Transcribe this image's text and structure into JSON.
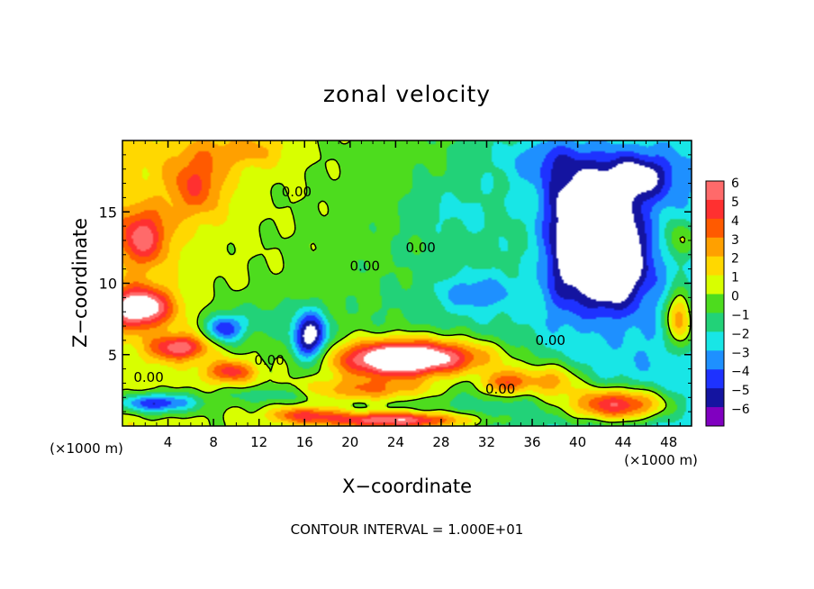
{
  "chart_data": {
    "type": "heatmap",
    "title": "zonal velocity",
    "xlabel": "X−coordinate",
    "ylabel": "Z−coordinate",
    "x_unit_left": "(×1000 m)",
    "x_unit_right": "(×1000 m)",
    "footer": "CONTOUR INTERVAL = 1.000E+01",
    "xlim": [
      0,
      50
    ],
    "ylim": [
      0,
      20
    ],
    "x_ticks": [
      4,
      8,
      12,
      16,
      20,
      24,
      28,
      32,
      36,
      40,
      44,
      48
    ],
    "y_ticks": [
      5,
      10,
      15
    ],
    "colorbar": {
      "levels": [
        "6",
        "5",
        "4",
        "3",
        "2",
        "1",
        "0",
        "−1",
        "−2",
        "−3",
        "−4",
        "−5",
        "−6"
      ],
      "colors": [
        "#ff6a6a",
        "#ff3030",
        "#ff5a00",
        "#ffa000",
        "#ffd800",
        "#d8ff00",
        "#4ddc1e",
        "#22d278",
        "#18e6e6",
        "#1e90ff",
        "#1e32ff",
        "#1414a0",
        "#8000c0",
        "#ffffff"
      ]
    },
    "contour_labels": [
      {
        "text": "0.00",
        "x": 15.3,
        "y": 16.4
      },
      {
        "text": "0.00",
        "x": 26.2,
        "y": 12.5
      },
      {
        "text": "0.00",
        "x": 21.3,
        "y": 11.2
      },
      {
        "text": "0.00",
        "x": 12.9,
        "y": 4.6
      },
      {
        "text": "0.00",
        "x": 2.3,
        "y": 3.4
      },
      {
        "text": "0.00",
        "x": 33.2,
        "y": 2.6
      },
      {
        "text": "0.00",
        "x": 37.6,
        "y": 6.0
      }
    ],
    "field_blobs": [
      {
        "x": 6.5,
        "y": 17,
        "sx": 2.5,
        "sy": 2.4,
        "a": 3.4
      },
      {
        "x": 11,
        "y": 19.3,
        "sx": 3.5,
        "sy": 1.2,
        "a": 2.0
      },
      {
        "x": 1.8,
        "y": 13.2,
        "sx": 2.2,
        "sy": 2.0,
        "a": 4.8
      },
      {
        "x": 1.5,
        "y": 8.3,
        "sx": 2.8,
        "sy": 1.4,
        "a": 7.5
      },
      {
        "x": 5,
        "y": 5.5,
        "sx": 2.5,
        "sy": 0.9,
        "a": 5.5
      },
      {
        "x": 9.5,
        "y": 3.8,
        "sx": 2.2,
        "sy": 0.8,
        "a": 4.5
      },
      {
        "x": 26.5,
        "y": 4.8,
        "sx": 6.5,
        "sy": 1.3,
        "a": 7.5
      },
      {
        "x": 23,
        "y": 4.5,
        "sx": 4.5,
        "sy": 1.3,
        "a": 4.0
      },
      {
        "x": 21.5,
        "y": 2.5,
        "sx": 6.5,
        "sy": 0.8,
        "a": 3.5
      },
      {
        "x": 33.5,
        "y": 3.0,
        "sx": 1.8,
        "sy": 0.9,
        "a": 5.0
      },
      {
        "x": 37.5,
        "y": 3.2,
        "sx": 2.8,
        "sy": 1.2,
        "a": 4.5
      },
      {
        "x": 43.5,
        "y": 1.5,
        "sx": 4.5,
        "sy": 1.2,
        "a": 7.5
      },
      {
        "x": 24,
        "y": 0.4,
        "sx": 6.5,
        "sy": 0.6,
        "a": 7.0
      },
      {
        "x": 16,
        "y": 0.8,
        "sx": 3.0,
        "sy": 0.6,
        "a": 4.0
      },
      {
        "x": 49,
        "y": 7.5,
        "sx": 1.3,
        "sy": 2.2,
        "a": 5.5
      },
      {
        "x": 49,
        "y": 13,
        "sx": 1.5,
        "sy": 1.5,
        "a": 3.0
      },
      {
        "x": 9,
        "y": 6.8,
        "sx": 1.6,
        "sy": 1.0,
        "a": -4.5
      },
      {
        "x": 16.5,
        "y": 6.2,
        "sx": 1.5,
        "sy": 1.7,
        "a": -6.5
      },
      {
        "x": 42.5,
        "y": 11.5,
        "sx": 3.2,
        "sy": 3.0,
        "a": -8.5
      },
      {
        "x": 41.5,
        "y": 15.5,
        "sx": 3.5,
        "sy": 2.5,
        "a": -5.0
      },
      {
        "x": 45.5,
        "y": 17.5,
        "sx": 3.0,
        "sy": 1.6,
        "a": -4.0
      },
      {
        "x": 38.5,
        "y": 12.5,
        "sx": 1.8,
        "sy": 5.0,
        "a": -2.5
      },
      {
        "x": 31,
        "y": 9.3,
        "sx": 3.5,
        "sy": 1.3,
        "a": -2.2
      },
      {
        "x": 12,
        "y": 7.5,
        "sx": 4.0,
        "sy": 1.5,
        "a": -1.2
      },
      {
        "x": 3,
        "y": 1.6,
        "sx": 3.5,
        "sy": 0.7,
        "a": -5.5
      },
      {
        "x": 13,
        "y": 2.2,
        "sx": 4.0,
        "sy": 0.6,
        "a": -2.0
      },
      {
        "x": 38,
        "y": 18.5,
        "sx": 5.0,
        "sy": 1.8,
        "a": -2.3
      },
      {
        "x": 29,
        "y": 15,
        "sx": 4.0,
        "sy": 2.0,
        "a": -1.0
      }
    ]
  }
}
